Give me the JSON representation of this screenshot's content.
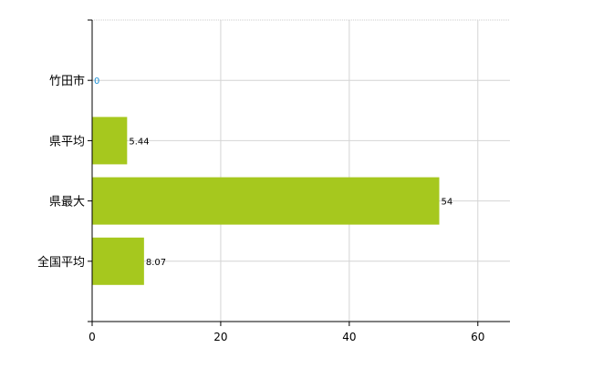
{
  "chart_data": {
    "type": "bar",
    "orientation": "horizontal",
    "categories": [
      "竹田市",
      "県平均",
      "県最大",
      "全国平均"
    ],
    "values": [
      0,
      5.44,
      54,
      8.07
    ],
    "value_labels": [
      "0",
      "5.44",
      "54",
      "8.07"
    ],
    "xlim": [
      0,
      65
    ],
    "xticks": [
      0,
      20,
      40,
      60
    ],
    "xtick_labels": [
      "0",
      "20",
      "40",
      "60"
    ],
    "grid": true,
    "title": "",
    "xlabel": "",
    "ylabel": "",
    "bar_color": "#a6c81e",
    "zero_label_color": "#1a8fd6"
  }
}
